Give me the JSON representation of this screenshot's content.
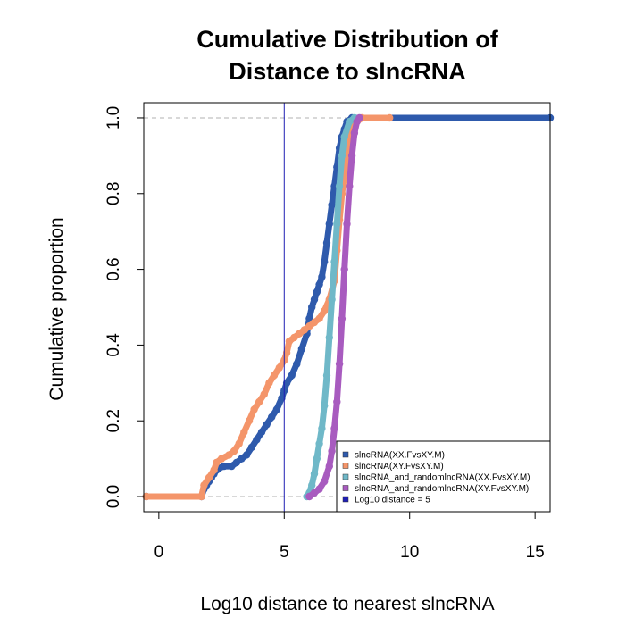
{
  "chart_data": {
    "type": "line",
    "title_line1": "Cumulative Distribution of",
    "title_line2": "Distance to slncRNA",
    "xlabel": "Log10 distance to nearest slncRNA",
    "ylabel": "Cumulative proportion",
    "xlim": [
      -0.6,
      15.6
    ],
    "ylim": [
      -0.04,
      1.04
    ],
    "x_ticks": [
      "0",
      "5",
      "10",
      "15"
    ],
    "x_tick_values": [
      0,
      5,
      10,
      15
    ],
    "y_ticks": [
      "0.0",
      "0.2",
      "0.4",
      "0.6",
      "0.8",
      "1.0"
    ],
    "y_tick_values": [
      0,
      0.2,
      0.4,
      0.6,
      0.8,
      1.0
    ],
    "reference_hlines": [
      0,
      1
    ],
    "reference_vline": 5,
    "legend_position": "bottom-right",
    "series": [
      {
        "name": "slncRNA(XX.FvsXY.M)",
        "color": "#2E5AAC",
        "points": [
          [
            -0.5,
            0
          ],
          [
            1.7,
            0
          ],
          [
            1.8,
            0.02
          ],
          [
            1.9,
            0.03
          ],
          [
            2.0,
            0.04
          ],
          [
            2.1,
            0.05
          ],
          [
            2.2,
            0.06
          ],
          [
            2.3,
            0.07
          ],
          [
            2.4,
            0.075
          ],
          [
            2.6,
            0.08
          ],
          [
            2.9,
            0.08
          ],
          [
            3.1,
            0.09
          ],
          [
            3.3,
            0.1
          ],
          [
            3.5,
            0.11
          ],
          [
            3.7,
            0.13
          ],
          [
            3.9,
            0.15
          ],
          [
            4.1,
            0.17
          ],
          [
            4.3,
            0.19
          ],
          [
            4.5,
            0.21
          ],
          [
            4.7,
            0.23
          ],
          [
            4.9,
            0.26
          ],
          [
            5.0,
            0.28
          ],
          [
            5.1,
            0.3
          ],
          [
            5.3,
            0.32
          ],
          [
            5.5,
            0.35
          ],
          [
            5.7,
            0.39
          ],
          [
            5.9,
            0.43
          ],
          [
            6.0,
            0.47
          ],
          [
            6.1,
            0.5
          ],
          [
            6.2,
            0.52
          ],
          [
            6.3,
            0.54
          ],
          [
            6.4,
            0.56
          ],
          [
            6.5,
            0.58
          ],
          [
            6.6,
            0.62
          ],
          [
            6.7,
            0.67
          ],
          [
            6.8,
            0.72
          ],
          [
            6.9,
            0.77
          ],
          [
            7.0,
            0.82
          ],
          [
            7.1,
            0.87
          ],
          [
            7.2,
            0.92
          ],
          [
            7.3,
            0.95
          ],
          [
            7.4,
            0.97
          ],
          [
            7.5,
            0.99
          ],
          [
            7.7,
            1.0
          ],
          [
            15.6,
            1.0
          ]
        ]
      },
      {
        "name": "slncRNA(XY.FvsXY.M)",
        "color": "#F4956A",
        "points": [
          [
            -0.5,
            0
          ],
          [
            1.7,
            0
          ],
          [
            1.8,
            0.03
          ],
          [
            2.0,
            0.05
          ],
          [
            2.2,
            0.07
          ],
          [
            2.3,
            0.09
          ],
          [
            2.5,
            0.1
          ],
          [
            2.8,
            0.11
          ],
          [
            3.0,
            0.12
          ],
          [
            3.2,
            0.14
          ],
          [
            3.4,
            0.17
          ],
          [
            3.6,
            0.2
          ],
          [
            3.8,
            0.23
          ],
          [
            4.0,
            0.25
          ],
          [
            4.2,
            0.27
          ],
          [
            4.4,
            0.3
          ],
          [
            4.6,
            0.32
          ],
          [
            4.8,
            0.34
          ],
          [
            5.0,
            0.36
          ],
          [
            5.1,
            0.38
          ],
          [
            5.2,
            0.41
          ],
          [
            5.4,
            0.42
          ],
          [
            5.6,
            0.43
          ],
          [
            5.8,
            0.44
          ],
          [
            6.0,
            0.45
          ],
          [
            6.2,
            0.46
          ],
          [
            6.4,
            0.47
          ],
          [
            6.6,
            0.49
          ],
          [
            6.8,
            0.52
          ],
          [
            7.0,
            0.57
          ],
          [
            7.1,
            0.65
          ],
          [
            7.2,
            0.73
          ],
          [
            7.3,
            0.8
          ],
          [
            7.4,
            0.85
          ],
          [
            7.5,
            0.9
          ],
          [
            7.6,
            0.94
          ],
          [
            7.7,
            0.96
          ],
          [
            7.8,
            0.98
          ],
          [
            7.9,
            0.99
          ],
          [
            8.1,
            1.0
          ],
          [
            9.2,
            1.0
          ]
        ]
      },
      {
        "name": "slncRNA_and_randomlncRNA(XX.FvsXY.M)",
        "color": "#6FB8C8",
        "points": [
          [
            5.9,
            0
          ],
          [
            6.0,
            0.01
          ],
          [
            6.1,
            0.03
          ],
          [
            6.2,
            0.06
          ],
          [
            6.3,
            0.1
          ],
          [
            6.4,
            0.14
          ],
          [
            6.5,
            0.18
          ],
          [
            6.6,
            0.24
          ],
          [
            6.7,
            0.32
          ],
          [
            6.8,
            0.42
          ],
          [
            6.9,
            0.52
          ],
          [
            7.0,
            0.62
          ],
          [
            7.1,
            0.72
          ],
          [
            7.2,
            0.82
          ],
          [
            7.3,
            0.9
          ],
          [
            7.4,
            0.95
          ],
          [
            7.6,
            0.99
          ],
          [
            7.8,
            1.0
          ]
        ]
      },
      {
        "name": "slncRNA_and_randomlncRNA(XY.FvsXY.M)",
        "color": "#A85BBF",
        "points": [
          [
            6.0,
            0
          ],
          [
            6.2,
            0.01
          ],
          [
            6.4,
            0.02
          ],
          [
            6.6,
            0.04
          ],
          [
            6.8,
            0.08
          ],
          [
            6.9,
            0.12
          ],
          [
            7.0,
            0.18
          ],
          [
            7.1,
            0.25
          ],
          [
            7.2,
            0.35
          ],
          [
            7.3,
            0.47
          ],
          [
            7.4,
            0.6
          ],
          [
            7.5,
            0.72
          ],
          [
            7.6,
            0.82
          ],
          [
            7.7,
            0.9
          ],
          [
            7.8,
            0.96
          ],
          [
            7.9,
            0.99
          ],
          [
            8.0,
            1.0
          ]
        ]
      },
      {
        "name": "Log10 distance = 5",
        "color": "#1F1FB4"
      }
    ]
  }
}
